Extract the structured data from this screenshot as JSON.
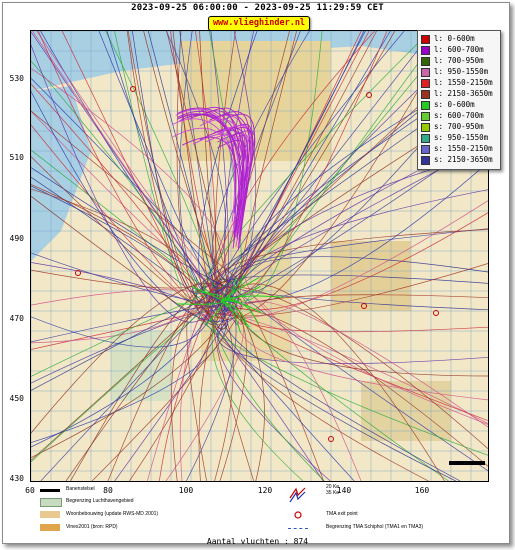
{
  "header": {
    "title": "2023-09-25 06:00:00 - 2023-09-25 11:29:59 CET",
    "site": "www.vlieghinder.nl"
  },
  "axes": {
    "y_ticks": [
      "530",
      "510",
      "490",
      "470",
      "450",
      "430"
    ],
    "x_ticks": [
      "60",
      "80",
      "100",
      "120",
      "140",
      "160"
    ]
  },
  "legend": {
    "items": [
      {
        "label": "l: 0-600m",
        "color": "#cc0000"
      },
      {
        "label": "l: 600-700m",
        "color": "#9900cc"
      },
      {
        "label": "l: 700-950m",
        "color": "#336600"
      },
      {
        "label": "l: 950-1550m",
        "color": "#cc66aa"
      },
      {
        "label": "l: 1550-2150m",
        "color": "#dd2222"
      },
      {
        "label": "l: 2150-3650m",
        "color": "#993322"
      },
      {
        "label": "s: 0-600m",
        "color": "#22cc22"
      },
      {
        "label": "s: 600-700m",
        "color": "#66cc33"
      },
      {
        "label": "s: 700-950m",
        "color": "#99cc00"
      },
      {
        "label": "s: 950-1550m",
        "color": "#33aa88"
      },
      {
        "label": "s: 1550-2150m",
        "color": "#6666cc"
      },
      {
        "label": "s: 2150-3650m",
        "color": "#333399"
      }
    ]
  },
  "bottom_legend": {
    "runway": "Banenstelsel",
    "airport_boundary": "Begrenzing Luchthavengebied",
    "housing": "Woonbebouwing (update RWS-MD 2001)",
    "vinex": "Vinex2001 (bron: RPD)",
    "noise": "20 Ke\n35 Ke",
    "tma_exit": "TMA exit point",
    "tma_boundary": "Begrenzing TMA Schiphol  (TMA1 en TMA3)"
  },
  "footer": {
    "count": "Aantal vluchten : 874"
  },
  "colors": {
    "water": "#a9cfe3",
    "land": "#f2e7c6",
    "grid": "#6fa0c8"
  }
}
